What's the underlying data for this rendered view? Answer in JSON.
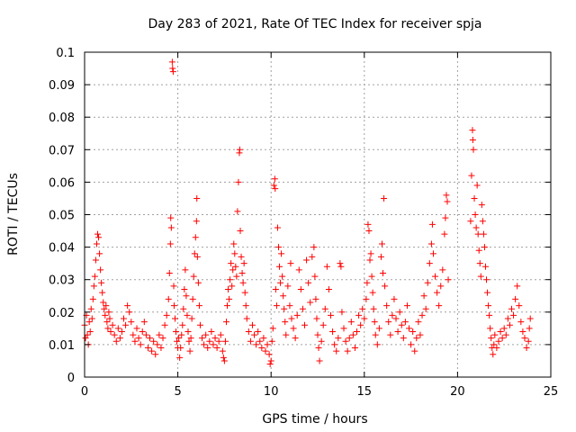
{
  "chart_data": {
    "type": "scatter",
    "title": "Day 283 of 2021, Rate Of TEC Index for receiver spja",
    "xlabel": "GPS time / hours",
    "ylabel": "ROTI / TECUs",
    "xlim": [
      0,
      25
    ],
    "ylim": [
      0,
      0.1
    ],
    "x_ticks": [
      "0",
      "5",
      "10",
      "15",
      "20",
      "25"
    ],
    "y_ticks": [
      "0",
      "0.01",
      "0.02",
      "0.03",
      "0.04",
      "0.05",
      "0.06",
      "0.07",
      "0.08",
      "0.09",
      "0.1"
    ],
    "grid": true,
    "marker": "+",
    "color": "#ff0000",
    "points": [
      [
        0.0,
        0.016
      ],
      [
        0.05,
        0.012
      ],
      [
        0.1,
        0.019
      ],
      [
        0.15,
        0.013
      ],
      [
        0.2,
        0.01
      ],
      [
        0.25,
        0.017
      ],
      [
        0.3,
        0.014
      ],
      [
        0.35,
        0.021
      ],
      [
        0.4,
        0.018
      ],
      [
        0.45,
        0.024
      ],
      [
        0.5,
        0.028
      ],
      [
        0.55,
        0.031
      ],
      [
        0.6,
        0.036
      ],
      [
        0.65,
        0.041
      ],
      [
        0.7,
        0.044
      ],
      [
        0.75,
        0.043
      ],
      [
        0.8,
        0.038
      ],
      [
        0.85,
        0.033
      ],
      [
        0.9,
        0.029
      ],
      [
        0.95,
        0.026
      ],
      [
        1.0,
        0.023
      ],
      [
        1.05,
        0.021
      ],
      [
        1.1,
        0.019
      ],
      [
        1.15,
        0.022
      ],
      [
        1.2,
        0.017
      ],
      [
        1.25,
        0.015
      ],
      [
        1.3,
        0.02
      ],
      [
        1.35,
        0.018
      ],
      [
        1.4,
        0.014
      ],
      [
        1.5,
        0.016
      ],
      [
        1.6,
        0.013
      ],
      [
        1.7,
        0.011
      ],
      [
        1.8,
        0.015
      ],
      [
        1.9,
        0.012
      ],
      [
        2.0,
        0.014
      ],
      [
        2.1,
        0.018
      ],
      [
        2.2,
        0.016
      ],
      [
        2.3,
        0.022
      ],
      [
        2.4,
        0.02
      ],
      [
        2.5,
        0.017
      ],
      [
        2.6,
        0.013
      ],
      [
        2.7,
        0.011
      ],
      [
        2.8,
        0.015
      ],
      [
        2.9,
        0.012
      ],
      [
        3.0,
        0.01
      ],
      [
        3.1,
        0.014
      ],
      [
        3.2,
        0.017
      ],
      [
        3.3,
        0.013
      ],
      [
        3.4,
        0.009
      ],
      [
        3.5,
        0.012
      ],
      [
        3.6,
        0.008
      ],
      [
        3.7,
        0.011
      ],
      [
        3.8,
        0.007
      ],
      [
        3.9,
        0.01
      ],
      [
        4.0,
        0.013
      ],
      [
        4.1,
        0.009
      ],
      [
        4.2,
        0.012
      ],
      [
        4.3,
        0.016
      ],
      [
        4.4,
        0.019
      ],
      [
        4.5,
        0.024
      ],
      [
        4.55,
        0.032
      ],
      [
        4.6,
        0.041
      ],
      [
        4.62,
        0.049
      ],
      [
        4.65,
        0.046
      ],
      [
        4.7,
        0.097
      ],
      [
        4.72,
        0.095
      ],
      [
        4.75,
        0.094
      ],
      [
        4.78,
        0.028
      ],
      [
        4.8,
        0.022
      ],
      [
        4.85,
        0.018
      ],
      [
        4.9,
        0.014
      ],
      [
        4.95,
        0.011
      ],
      [
        5.0,
        0.009
      ],
      [
        5.05,
        0.012
      ],
      [
        5.1,
        0.006
      ],
      [
        5.15,
        0.009
      ],
      [
        5.2,
        0.013
      ],
      [
        5.25,
        0.016
      ],
      [
        5.3,
        0.021
      ],
      [
        5.35,
        0.027
      ],
      [
        5.4,
        0.033
      ],
      [
        5.45,
        0.025
      ],
      [
        5.5,
        0.019
      ],
      [
        5.55,
        0.014
      ],
      [
        5.6,
        0.011
      ],
      [
        5.65,
        0.008
      ],
      [
        5.7,
        0.012
      ],
      [
        5.75,
        0.018
      ],
      [
        5.8,
        0.024
      ],
      [
        5.85,
        0.031
      ],
      [
        5.9,
        0.038
      ],
      [
        5.95,
        0.043
      ],
      [
        6.0,
        0.048
      ],
      [
        6.02,
        0.055
      ],
      [
        6.05,
        0.037
      ],
      [
        6.1,
        0.029
      ],
      [
        6.15,
        0.022
      ],
      [
        6.2,
        0.016
      ],
      [
        6.3,
        0.012
      ],
      [
        6.4,
        0.01
      ],
      [
        6.5,
        0.013
      ],
      [
        6.6,
        0.009
      ],
      [
        6.7,
        0.011
      ],
      [
        6.8,
        0.014
      ],
      [
        6.9,
        0.01
      ],
      [
        7.0,
        0.012
      ],
      [
        7.1,
        0.009
      ],
      [
        7.2,
        0.011
      ],
      [
        7.3,
        0.013
      ],
      [
        7.4,
        0.008
      ],
      [
        7.45,
        0.006
      ],
      [
        7.5,
        0.005
      ],
      [
        7.55,
        0.011
      ],
      [
        7.6,
        0.017
      ],
      [
        7.65,
        0.022
      ],
      [
        7.7,
        0.027
      ],
      [
        7.75,
        0.024
      ],
      [
        7.8,
        0.03
      ],
      [
        7.85,
        0.035
      ],
      [
        7.9,
        0.028
      ],
      [
        7.95,
        0.033
      ],
      [
        8.0,
        0.041
      ],
      [
        8.05,
        0.038
      ],
      [
        8.1,
        0.034
      ],
      [
        8.15,
        0.031
      ],
      [
        8.2,
        0.051
      ],
      [
        8.25,
        0.06
      ],
      [
        8.3,
        0.069
      ],
      [
        8.32,
        0.07
      ],
      [
        8.35,
        0.045
      ],
      [
        8.4,
        0.037
      ],
      [
        8.45,
        0.032
      ],
      [
        8.5,
        0.029
      ],
      [
        8.55,
        0.035
      ],
      [
        8.6,
        0.026
      ],
      [
        8.65,
        0.022
      ],
      [
        8.7,
        0.018
      ],
      [
        8.8,
        0.014
      ],
      [
        8.9,
        0.011
      ],
      [
        9.0,
        0.016
      ],
      [
        9.1,
        0.013
      ],
      [
        9.2,
        0.01
      ],
      [
        9.3,
        0.014
      ],
      [
        9.4,
        0.011
      ],
      [
        9.5,
        0.009
      ],
      [
        9.6,
        0.012
      ],
      [
        9.7,
        0.008
      ],
      [
        9.8,
        0.01
      ],
      [
        9.9,
        0.007
      ],
      [
        9.95,
        0.004
      ],
      [
        10.0,
        0.005
      ],
      [
        10.05,
        0.011
      ],
      [
        10.1,
        0.015
      ],
      [
        10.15,
        0.059
      ],
      [
        10.2,
        0.061
      ],
      [
        10.22,
        0.058
      ],
      [
        10.25,
        0.027
      ],
      [
        10.3,
        0.022
      ],
      [
        10.35,
        0.046
      ],
      [
        10.4,
        0.04
      ],
      [
        10.45,
        0.034
      ],
      [
        10.5,
        0.029
      ],
      [
        10.55,
        0.038
      ],
      [
        10.6,
        0.031
      ],
      [
        10.65,
        0.025
      ],
      [
        10.7,
        0.021
      ],
      [
        10.75,
        0.017
      ],
      [
        10.8,
        0.013
      ],
      [
        10.9,
        0.028
      ],
      [
        11.0,
        0.022
      ],
      [
        11.05,
        0.035
      ],
      [
        11.1,
        0.018
      ],
      [
        11.2,
        0.015
      ],
      [
        11.3,
        0.012
      ],
      [
        11.4,
        0.019
      ],
      [
        11.5,
        0.033
      ],
      [
        11.6,
        0.027
      ],
      [
        11.7,
        0.021
      ],
      [
        11.8,
        0.016
      ],
      [
        11.9,
        0.036
      ],
      [
        12.0,
        0.029
      ],
      [
        12.1,
        0.023
      ],
      [
        12.2,
        0.037
      ],
      [
        12.3,
        0.04
      ],
      [
        12.35,
        0.031
      ],
      [
        12.4,
        0.024
      ],
      [
        12.45,
        0.018
      ],
      [
        12.5,
        0.013
      ],
      [
        12.55,
        0.009
      ],
      [
        12.6,
        0.005
      ],
      [
        12.7,
        0.011
      ],
      [
        12.8,
        0.016
      ],
      [
        12.9,
        0.021
      ],
      [
        13.0,
        0.034
      ],
      [
        13.1,
        0.027
      ],
      [
        13.2,
        0.019
      ],
      [
        13.3,
        0.014
      ],
      [
        13.4,
        0.01
      ],
      [
        13.5,
        0.008
      ],
      [
        13.6,
        0.012
      ],
      [
        13.7,
        0.035
      ],
      [
        13.75,
        0.034
      ],
      [
        13.8,
        0.02
      ],
      [
        13.9,
        0.015
      ],
      [
        14.0,
        0.011
      ],
      [
        14.1,
        0.008
      ],
      [
        14.2,
        0.012
      ],
      [
        14.3,
        0.017
      ],
      [
        14.4,
        0.013
      ],
      [
        14.5,
        0.009
      ],
      [
        14.6,
        0.014
      ],
      [
        14.7,
        0.019
      ],
      [
        14.8,
        0.016
      ],
      [
        14.9,
        0.021
      ],
      [
        15.0,
        0.018
      ],
      [
        15.1,
        0.024
      ],
      [
        15.15,
        0.029
      ],
      [
        15.2,
        0.047
      ],
      [
        15.25,
        0.045
      ],
      [
        15.3,
        0.036
      ],
      [
        15.35,
        0.038
      ],
      [
        15.4,
        0.031
      ],
      [
        15.45,
        0.026
      ],
      [
        15.5,
        0.021
      ],
      [
        15.55,
        0.017
      ],
      [
        15.6,
        0.013
      ],
      [
        15.7,
        0.01
      ],
      [
        15.8,
        0.015
      ],
      [
        15.9,
        0.037
      ],
      [
        15.95,
        0.041
      ],
      [
        16.0,
        0.032
      ],
      [
        16.05,
        0.055
      ],
      [
        16.1,
        0.028
      ],
      [
        16.2,
        0.022
      ],
      [
        16.3,
        0.017
      ],
      [
        16.4,
        0.013
      ],
      [
        16.5,
        0.019
      ],
      [
        16.6,
        0.024
      ],
      [
        16.7,
        0.018
      ],
      [
        16.8,
        0.014
      ],
      [
        16.9,
        0.02
      ],
      [
        17.0,
        0.016
      ],
      [
        17.1,
        0.012
      ],
      [
        17.2,
        0.017
      ],
      [
        17.3,
        0.022
      ],
      [
        17.4,
        0.015
      ],
      [
        17.5,
        0.01
      ],
      [
        17.6,
        0.014
      ],
      [
        17.7,
        0.008
      ],
      [
        17.8,
        0.012
      ],
      [
        17.9,
        0.017
      ],
      [
        18.0,
        0.013
      ],
      [
        18.1,
        0.019
      ],
      [
        18.2,
        0.025
      ],
      [
        18.3,
        0.021
      ],
      [
        18.4,
        0.029
      ],
      [
        18.5,
        0.035
      ],
      [
        18.6,
        0.041
      ],
      [
        18.65,
        0.047
      ],
      [
        18.7,
        0.038
      ],
      [
        18.8,
        0.031
      ],
      [
        18.9,
        0.026
      ],
      [
        19.0,
        0.022
      ],
      [
        19.1,
        0.028
      ],
      [
        19.2,
        0.033
      ],
      [
        19.3,
        0.044
      ],
      [
        19.35,
        0.049
      ],
      [
        19.4,
        0.056
      ],
      [
        19.45,
        0.054
      ],
      [
        19.5,
        0.03
      ],
      [
        20.7,
        0.048
      ],
      [
        20.75,
        0.062
      ],
      [
        20.8,
        0.076
      ],
      [
        20.82,
        0.073
      ],
      [
        20.85,
        0.07
      ],
      [
        20.9,
        0.055
      ],
      [
        20.95,
        0.05
      ],
      [
        21.0,
        0.046
      ],
      [
        21.05,
        0.059
      ],
      [
        21.1,
        0.044
      ],
      [
        21.15,
        0.039
      ],
      [
        21.2,
        0.035
      ],
      [
        21.25,
        0.031
      ],
      [
        21.3,
        0.053
      ],
      [
        21.35,
        0.048
      ],
      [
        21.4,
        0.044
      ],
      [
        21.45,
        0.04
      ],
      [
        21.5,
        0.034
      ],
      [
        21.55,
        0.03
      ],
      [
        21.6,
        0.026
      ],
      [
        21.65,
        0.022
      ],
      [
        21.7,
        0.019
      ],
      [
        21.75,
        0.015
      ],
      [
        21.8,
        0.012
      ],
      [
        21.85,
        0.009
      ],
      [
        21.9,
        0.007
      ],
      [
        21.95,
        0.01
      ],
      [
        22.0,
        0.013
      ],
      [
        22.1,
        0.009
      ],
      [
        22.2,
        0.011
      ],
      [
        22.3,
        0.014
      ],
      [
        22.4,
        0.012
      ],
      [
        22.5,
        0.015
      ],
      [
        22.6,
        0.013
      ],
      [
        22.7,
        0.018
      ],
      [
        22.8,
        0.016
      ],
      [
        22.9,
        0.021
      ],
      [
        23.0,
        0.019
      ],
      [
        23.1,
        0.024
      ],
      [
        23.2,
        0.028
      ],
      [
        23.3,
        0.022
      ],
      [
        23.4,
        0.017
      ],
      [
        23.5,
        0.014
      ],
      [
        23.6,
        0.012
      ],
      [
        23.7,
        0.009
      ],
      [
        23.8,
        0.011
      ],
      [
        23.85,
        0.015
      ],
      [
        23.9,
        0.018
      ]
    ]
  }
}
